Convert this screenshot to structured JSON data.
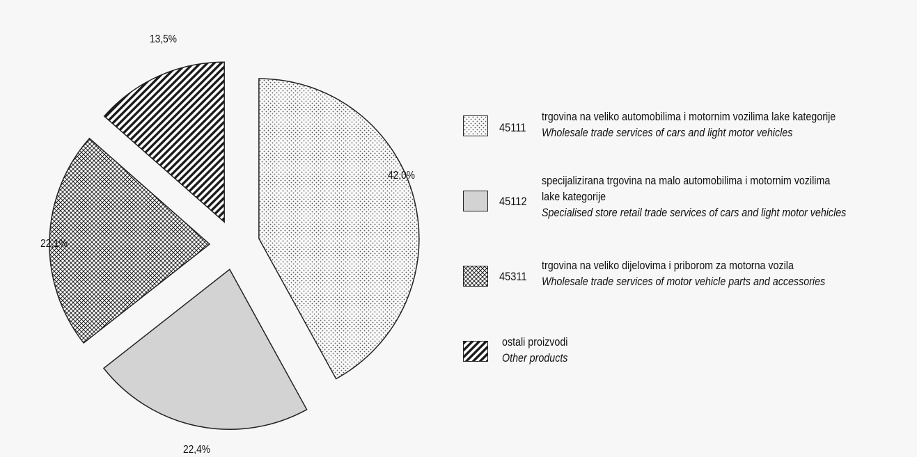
{
  "chart_data": {
    "type": "pie",
    "slices": [
      {
        "code": "45111",
        "value": 42.0,
        "label": "42,0%",
        "pattern": "dots",
        "color": "#f2f2f2",
        "name_hr": "trgovina na veliko automobilima i motornim vozilima lake kategorije",
        "name_en": "Wholesale trade services of cars and light motor vehicles"
      },
      {
        "code": "45112",
        "value": 22.4,
        "label": "22,4%",
        "pattern": "solid",
        "color": "#d3d3d3",
        "name_hr_1": "specijalizirana trgovina na malo automobilima i motornim vozilima",
        "name_hr_2": "lake kategorije",
        "name_en": "Specialised store retail trade services of cars and light motor vehicles"
      },
      {
        "code": "45311",
        "value": 22.1,
        "label": "22,1%",
        "pattern": "crosshatch",
        "color": "#ffffff",
        "name_hr": "trgovina na veliko dijelovima i priborom za motorna vozila",
        "name_en": "Wholesale trade services of motor vehicle parts and accessories"
      },
      {
        "code": "",
        "value": 13.5,
        "label": "13,5%",
        "pattern": "diagonal",
        "color": "#ffffff",
        "name_hr": "ostali proizvodi",
        "name_en": "Other products"
      }
    ],
    "start_angle": "12 o'clock",
    "direction": "clockwise",
    "exploded": true
  }
}
